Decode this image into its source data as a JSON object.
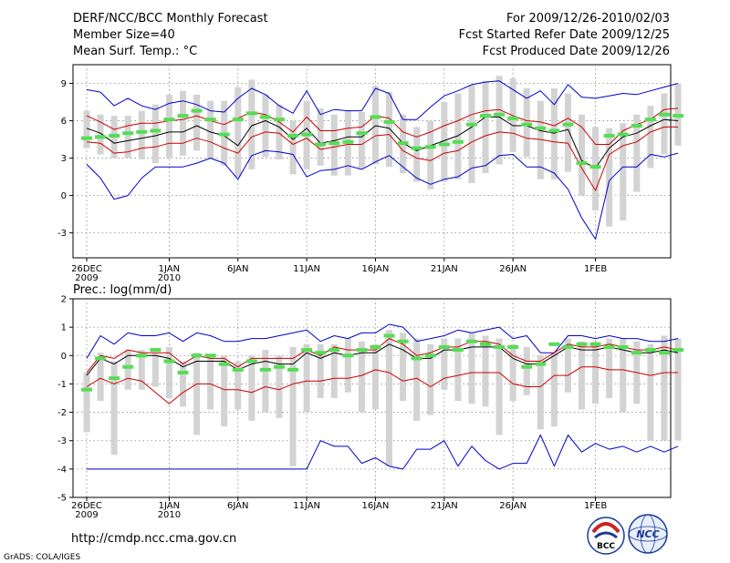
{
  "header": {
    "left_lines": [
      "DERF/NCC/BCC Monthly Forecast",
      "Member Size=40",
      "Mean Surf. Temp.: °C"
    ],
    "right_lines": [
      "For 2009/12/26-2010/02/03",
      "Fcst Started Refer Date 2009/12/25",
      "Fcst Produced Date 2009/12/26"
    ]
  },
  "footer": {
    "url": "http://cmdp.ncc.cma.gov.cn",
    "credit": "GrADS: COLA/IGES",
    "logo_bcc": "BCC",
    "logo_ncc": "NCC"
  },
  "colors": {
    "box": "#d3d3d3",
    "envelope": "#0000cc",
    "spread": "#cc0000",
    "mean": "#000000",
    "obs": "#55dd55",
    "grid": "#888888"
  },
  "chart_data": [
    {
      "type": "line",
      "title": "Mean Surf. Temp.: °C",
      "ylim": [
        -5,
        10.5
      ],
      "yticks": [
        -3,
        0,
        3,
        6,
        9
      ],
      "x_tick_labels": [
        {
          "day": 1,
          "line1": "26DEC",
          "line2": "2009"
        },
        {
          "day": 7,
          "line1": "1JAN",
          "line2": "2010"
        },
        {
          "day": 12,
          "line1": "6JAN",
          "line2": ""
        },
        {
          "day": 17,
          "line1": "11JAN",
          "line2": ""
        },
        {
          "day": 22,
          "line1": "16JAN",
          "line2": ""
        },
        {
          "day": 27,
          "line1": "21JAN",
          "line2": ""
        },
        {
          "day": 32,
          "line1": "26JAN",
          "line2": ""
        },
        {
          "day": 38,
          "line1": "1FEB",
          "line2": ""
        }
      ],
      "box_high": [
        6.8,
        6.5,
        6.4,
        6.4,
        6.8,
        7.3,
        8.1,
        8.4,
        8.1,
        7.6,
        7.6,
        8.7,
        9.3,
        8.1,
        7.3,
        6.0,
        7.6,
        7.0,
        6.5,
        6.8,
        6.7,
        8.8,
        8.3,
        6.5,
        5.5,
        6.0,
        7.5,
        8.2,
        8.9,
        9.2,
        9.6,
        9.4,
        8.6,
        7.6,
        8.6,
        8.2,
        6.5,
        5.5,
        5.4,
        5.8,
        6.5,
        7.2,
        8.2,
        9.0
      ],
      "box_low": [
        3.8,
        3.3,
        3.0,
        3.0,
        2.9,
        2.6,
        3.0,
        3.2,
        3.6,
        3.0,
        2.4,
        1.5,
        2.1,
        3.1,
        2.9,
        1.7,
        2.1,
        2.4,
        1.6,
        1.6,
        2.2,
        2.5,
        2.3,
        1.8,
        1.1,
        0.5,
        1.1,
        1.3,
        1.0,
        1.8,
        2.5,
        3.5,
        3.1,
        1.3,
        1.3,
        1.9,
        0.0,
        -1.2,
        -2.5,
        -2.0,
        0.3,
        2.2,
        3.3,
        4.0
      ],
      "blue_high": [
        8.5,
        8.3,
        7.2,
        7.8,
        7.2,
        6.9,
        7.4,
        7.6,
        7.3,
        6.8,
        6.7,
        7.8,
        8.6,
        8.1,
        7.2,
        6.6,
        8.4,
        6.5,
        6.9,
        6.8,
        6.8,
        8.6,
        8.2,
        6.1,
        6.1,
        7.1,
        8.0,
        8.4,
        8.9,
        9.1,
        9.2,
        8.5,
        7.8,
        8.4,
        7.3,
        8.9,
        7.9,
        7.8,
        8.0,
        8.2,
        8.1,
        8.4,
        8.7,
        9.0
      ],
      "blue_low": [
        2.5,
        1.4,
        -0.3,
        0.0,
        1.4,
        2.3,
        2.3,
        2.3,
        2.6,
        3.0,
        2.6,
        1.3,
        3.2,
        3.6,
        3.5,
        3.3,
        1.5,
        2.0,
        2.1,
        2.4,
        2.1,
        2.7,
        3.2,
        2.3,
        1.4,
        0.9,
        1.3,
        1.5,
        2.2,
        2.4,
        3.2,
        3.3,
        2.3,
        2.3,
        1.8,
        0.5,
        -1.8,
        -3.5,
        1.2,
        2.3,
        2.3,
        3.3,
        3.1,
        3.4
      ],
      "red_high": [
        6.4,
        5.9,
        5.3,
        5.6,
        5.8,
        5.8,
        6.0,
        6.1,
        6.4,
        6.0,
        5.7,
        6.2,
        6.7,
        6.5,
        5.9,
        5.1,
        6.3,
        5.2,
        5.2,
        5.4,
        5.5,
        6.4,
        6.2,
        5.1,
        4.7,
        5.1,
        5.6,
        6.0,
        6.5,
        6.8,
        6.9,
        6.4,
        6.0,
        5.9,
        5.6,
        6.2,
        5.5,
        4.1,
        4.1,
        5.2,
        5.7,
        6.1,
        6.9,
        7.0
      ],
      "red_low": [
        4.3,
        4.2,
        3.4,
        3.5,
        3.8,
        3.9,
        4.2,
        4.2,
        4.6,
        4.3,
        3.8,
        3.4,
        4.7,
        5.1,
        5.0,
        4.1,
        4.6,
        3.7,
        3.9,
        4.1,
        4.1,
        4.8,
        4.9,
        3.6,
        3.0,
        2.8,
        3.4,
        3.6,
        4.3,
        4.8,
        5.1,
        5.0,
        4.6,
        4.5,
        4.3,
        4.2,
        2.2,
        0.4,
        3.3,
        4.0,
        4.3,
        5.1,
        5.5,
        5.5
      ],
      "mean": [
        5.4,
        5.0,
        4.2,
        4.4,
        4.6,
        4.8,
        5.1,
        5.1,
        5.6,
        5.1,
        4.8,
        4.0,
        5.6,
        6.0,
        5.5,
        4.5,
        5.4,
        4.2,
        4.4,
        4.7,
        4.7,
        5.6,
        5.4,
        4.2,
        3.6,
        4.0,
        4.4,
        4.8,
        5.5,
        6.3,
        6.3,
        5.6,
        5.6,
        5.2,
        5.0,
        5.3,
        2.8,
        2.2,
        3.8,
        4.7,
        5.0,
        5.6,
        6.1,
        6.0
      ],
      "obs": [
        4.6,
        4.7,
        4.8,
        5.0,
        5.1,
        5.2,
        6.1,
        6.4,
        6.8,
        6.1,
        4.9,
        6.1,
        6.6,
        6.3,
        6.1,
        4.8,
        4.9,
        4.1,
        4.2,
        4.3,
        5.0,
        6.3,
        5.9,
        4.2,
        3.8,
        3.9,
        4.1,
        4.3,
        5.7,
        6.4,
        6.5,
        6.2,
        5.7,
        5.4,
        5.2,
        5.7,
        2.6,
        2.3,
        4.8,
        4.9,
        5.6,
        6.1,
        6.5,
        6.4
      ]
    },
    {
      "type": "line",
      "title": "Prec.: log(mm/d)",
      "ylim": [
        -5,
        2
      ],
      "yticks": [
        -5,
        -4,
        -3,
        -2,
        -1,
        0,
        1,
        2
      ],
      "x_tick_labels": [
        {
          "day": 1,
          "line1": "26DEC",
          "line2": "2009"
        },
        {
          "day": 7,
          "line1": "1JAN",
          "line2": "2010"
        },
        {
          "day": 12,
          "line1": "6JAN",
          "line2": ""
        },
        {
          "day": 17,
          "line1": "11JAN",
          "line2": ""
        },
        {
          "day": 22,
          "line1": "16JAN",
          "line2": ""
        },
        {
          "day": 27,
          "line1": "21JAN",
          "line2": ""
        },
        {
          "day": 32,
          "line1": "26JAN",
          "line2": ""
        },
        {
          "day": 38,
          "line1": "1FEB",
          "line2": ""
        }
      ],
      "box_high": [
        -0.6,
        0.1,
        -0.2,
        0.2,
        0.2,
        0.1,
        0.3,
        -0.2,
        0.1,
        0.0,
        0.0,
        -0.2,
        0.0,
        0.2,
        0.0,
        0.3,
        0.4,
        0.4,
        0.4,
        0.6,
        0.5,
        0.4,
        0.9,
        0.8,
        0.6,
        0.4,
        0.6,
        0.6,
        0.8,
        0.7,
        0.6,
        0.4,
        0.3,
        0.0,
        0.1,
        0.6,
        0.5,
        0.5,
        0.6,
        0.6,
        0.5,
        0.4,
        0.7,
        0.6
      ],
      "box_low": [
        -2.7,
        -1.6,
        -3.5,
        -1.2,
        -1.2,
        -1.1,
        -1.5,
        -1.8,
        -2.8,
        -1.9,
        -2.5,
        -1.9,
        -2.3,
        -2.0,
        -2.2,
        -3.9,
        -2.0,
        -1.5,
        -1.5,
        -1.3,
        -2.0,
        -1.9,
        -3.9,
        -1.6,
        -2.3,
        -2.1,
        -1.2,
        -1.6,
        -1.7,
        -1.8,
        -2.8,
        -1.6,
        -1.4,
        -2.6,
        -2.5,
        -1.3,
        -1.9,
        -1.7,
        -1.5,
        -2.0,
        -1.7,
        -3.0,
        -3.0,
        -3.0
      ],
      "blue_high": [
        -0.1,
        0.7,
        0.4,
        0.8,
        0.7,
        0.7,
        0.8,
        0.5,
        0.8,
        0.7,
        0.5,
        0.5,
        0.6,
        0.6,
        0.7,
        0.8,
        0.9,
        0.5,
        0.7,
        0.6,
        0.8,
        0.8,
        1.1,
        1.0,
        0.5,
        0.6,
        0.7,
        0.9,
        0.8,
        0.9,
        1.0,
        0.6,
        0.7,
        0.1,
        0.1,
        0.7,
        0.7,
        0.6,
        0.7,
        0.6,
        0.6,
        0.5,
        0.5,
        0.6
      ],
      "blue_low": [
        -4,
        -4,
        -4,
        -4,
        -4,
        -4,
        -4,
        -4,
        -4,
        -4,
        -4,
        -4,
        -4,
        -4,
        -4,
        -4,
        -4,
        -3.0,
        -3.2,
        -3.2,
        -3.8,
        -3.6,
        -3.9,
        -4.0,
        -3.3,
        -3.3,
        -3.0,
        -3.9,
        -3.2,
        -3.7,
        -4.0,
        -3.8,
        -3.8,
        -2.8,
        -3.9,
        -2.8,
        -3.4,
        -3.1,
        -3.3,
        -3.2,
        -3.4,
        -3.2,
        -3.4,
        -3.2
      ],
      "red_high": [
        -0.6,
        0.0,
        -0.1,
        0.2,
        0.1,
        0.1,
        0.1,
        -0.3,
        0.0,
        -0.1,
        -0.1,
        -0.4,
        -0.1,
        -0.1,
        -0.1,
        -0.1,
        0.2,
        0.0,
        0.3,
        0.2,
        0.2,
        0.2,
        0.6,
        0.4,
        0.0,
        0.1,
        0.3,
        0.3,
        0.5,
        0.5,
        0.4,
        0.0,
        -0.2,
        -0.2,
        0.1,
        0.4,
        0.3,
        0.3,
        0.4,
        0.3,
        0.2,
        0.2,
        0.3,
        0.2
      ],
      "red_low": [
        -1.1,
        -0.8,
        -1.0,
        -0.8,
        -0.9,
        -1.3,
        -1.7,
        -1.3,
        -1.0,
        -1.0,
        -1.2,
        -1.2,
        -1.3,
        -1.1,
        -1.2,
        -1.0,
        -0.9,
        -0.9,
        -0.8,
        -0.8,
        -0.7,
        -0.5,
        -0.6,
        -0.9,
        -0.8,
        -1.1,
        -0.8,
        -0.7,
        -0.6,
        -0.6,
        -0.6,
        -1.0,
        -1.1,
        -1.1,
        -0.7,
        -0.7,
        -0.4,
        -0.4,
        -0.5,
        -0.5,
        -0.6,
        -0.7,
        -0.6,
        -0.6
      ],
      "mean": [
        -0.7,
        -0.1,
        -0.3,
        0.0,
        0.0,
        0.0,
        -0.1,
        -0.4,
        -0.2,
        -0.2,
        -0.2,
        -0.5,
        -0.3,
        -0.2,
        -0.3,
        -0.3,
        0.1,
        -0.1,
        0.1,
        0.0,
        0.1,
        0.1,
        0.4,
        0.2,
        -0.1,
        -0.1,
        0.2,
        0.2,
        0.3,
        0.3,
        0.3,
        -0.1,
        -0.3,
        -0.3,
        0.0,
        0.3,
        0.2,
        0.2,
        0.3,
        0.2,
        0.1,
        0.1,
        0.2,
        0.1
      ],
      "obs": [
        -1.2,
        -0.1,
        -0.8,
        -0.4,
        0.0,
        0.2,
        -0.2,
        -0.6,
        0.0,
        0.0,
        -0.3,
        -0.5,
        -0.2,
        -0.5,
        -0.4,
        -0.5,
        0.2,
        0.1,
        0.2,
        0.0,
        0.2,
        0.3,
        0.7,
        0.5,
        -0.1,
        0.0,
        0.3,
        0.2,
        0.5,
        0.4,
        0.3,
        0.3,
        -0.4,
        -0.3,
        0.4,
        0.3,
        0.4,
        0.4,
        0.3,
        0.3,
        0.1,
        0.2,
        0.1,
        0.2
      ]
    }
  ]
}
